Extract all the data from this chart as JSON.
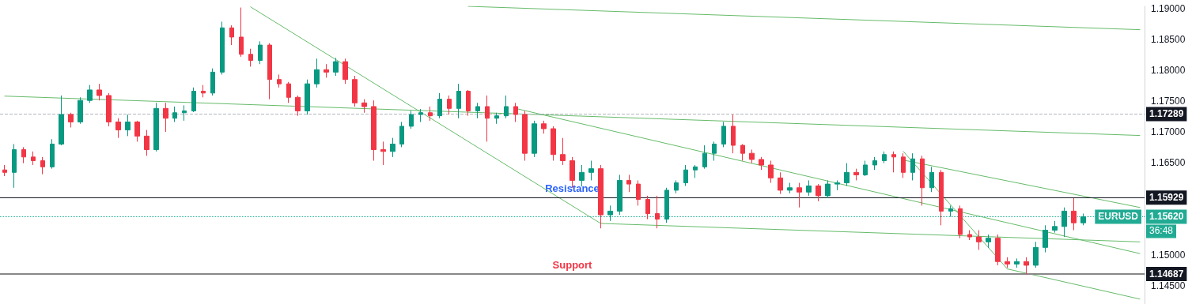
{
  "chart_data": {
    "type": "candlestick",
    "categories": [
      null,
      null,
      null,
      null,
      null,
      null,
      null,
      null,
      null,
      null,
      null,
      null,
      null,
      null,
      null,
      null,
      null,
      null,
      null,
      null,
      null,
      null,
      null,
      null,
      null,
      null,
      null,
      null,
      null,
      null,
      null,
      null,
      null,
      null,
      null,
      null,
      null,
      null,
      null,
      null,
      null,
      null,
      null,
      null,
      null,
      null,
      null,
      null,
      null,
      null,
      null,
      null,
      null,
      null,
      null,
      null,
      null,
      null,
      null,
      null,
      null,
      null,
      null,
      null,
      null,
      null,
      null,
      null,
      null,
      null,
      null,
      null,
      null,
      null,
      null,
      null,
      null,
      null,
      null,
      null,
      null,
      null,
      null,
      null,
      null,
      null,
      null,
      null,
      null,
      null,
      null,
      null,
      null,
      null,
      null,
      null,
      null,
      null,
      null,
      null,
      null,
      null,
      null,
      null,
      null,
      null,
      null,
      null,
      null,
      null,
      null,
      null,
      null,
      null,
      null,
      null,
      null,
      null,
      null,
      null,
      null
    ],
    "ohlc": [
      [
        1.1638,
        1.1646,
        1.1628,
        1.1634
      ],
      [
        1.1634,
        1.168,
        1.1609,
        1.1671
      ],
      [
        1.1671,
        1.1675,
        1.1649,
        1.1659
      ],
      [
        1.1659,
        1.1668,
        1.1646,
        1.1653
      ],
      [
        1.1653,
        1.1659,
        1.1631,
        1.1643
      ],
      [
        1.1643,
        1.1688,
        1.164,
        1.168
      ],
      [
        1.168,
        1.1759,
        1.1678,
        1.1728
      ],
      [
        1.1728,
        1.1731,
        1.1707,
        1.1716
      ],
      [
        1.1716,
        1.1756,
        1.1713,
        1.1751
      ],
      [
        1.1751,
        1.1776,
        1.1747,
        1.1768
      ],
      [
        1.1768,
        1.1778,
        1.1751,
        1.1759
      ],
      [
        1.1759,
        1.1763,
        1.1709,
        1.1716
      ],
      [
        1.1716,
        1.1722,
        1.169,
        1.1703
      ],
      [
        1.1703,
        1.1728,
        1.1693,
        1.1716
      ],
      [
        1.1716,
        1.1718,
        1.1684,
        1.1693
      ],
      [
        1.1693,
        1.1703,
        1.1661,
        1.1671
      ],
      [
        1.1671,
        1.1747,
        1.1668,
        1.1738
      ],
      [
        1.1738,
        1.1747,
        1.17,
        1.1722
      ],
      [
        1.1722,
        1.1741,
        1.1716,
        1.1731
      ],
      [
        1.1731,
        1.1743,
        1.1718,
        1.1734
      ],
      [
        1.1734,
        1.1772,
        1.1732,
        1.1766
      ],
      [
        1.1766,
        1.1776,
        1.1756,
        1.1763
      ],
      [
        1.1763,
        1.1803,
        1.1759,
        1.1797
      ],
      [
        1.1797,
        1.1879,
        1.1793,
        1.1869
      ],
      [
        1.1869,
        1.1873,
        1.1841,
        1.1854
      ],
      [
        1.1854,
        1.1902,
        1.1822,
        1.1826
      ],
      [
        1.1826,
        1.1835,
        1.1806,
        1.1816
      ],
      [
        1.1816,
        1.1847,
        1.181,
        1.1841
      ],
      [
        1.1841,
        1.1844,
        1.1753,
        1.1785
      ],
      [
        1.1785,
        1.1793,
        1.1772,
        1.1778
      ],
      [
        1.1778,
        1.1781,
        1.1747,
        1.1756
      ],
      [
        1.1756,
        1.1759,
        1.1726,
        1.1734
      ],
      [
        1.1734,
        1.1785,
        1.1728,
        1.1778
      ],
      [
        1.1778,
        1.1819,
        1.1772,
        1.1801
      ],
      [
        1.1801,
        1.181,
        1.1788,
        1.1797
      ],
      [
        1.1797,
        1.182,
        1.1791,
        1.1814
      ],
      [
        1.1814,
        1.1819,
        1.1778,
        1.1785
      ],
      [
        1.1785,
        1.1791,
        1.1741,
        1.1747
      ],
      [
        1.1747,
        1.1753,
        1.1731,
        1.1741
      ],
      [
        1.1741,
        1.1751,
        1.1653,
        1.1671
      ],
      [
        1.1671,
        1.1684,
        1.1646,
        1.1668
      ],
      [
        1.1668,
        1.169,
        1.1659,
        1.168
      ],
      [
        1.168,
        1.1716,
        1.1675,
        1.1709
      ],
      [
        1.1709,
        1.1734,
        1.1705,
        1.1728
      ],
      [
        1.1728,
        1.1737,
        1.1716,
        1.1731
      ],
      [
        1.1731,
        1.1741,
        1.1718,
        1.1726
      ],
      [
        1.1726,
        1.1763,
        1.1722,
        1.1753
      ],
      [
        1.1753,
        1.1759,
        1.1728,
        1.1738
      ],
      [
        1.1738,
        1.1778,
        1.1722,
        1.1766
      ],
      [
        1.1766,
        1.1768,
        1.1726,
        1.1734
      ],
      [
        1.1734,
        1.1747,
        1.1722,
        1.1741
      ],
      [
        1.1741,
        1.1759,
        1.1684,
        1.1722
      ],
      [
        1.1722,
        1.1731,
        1.1713,
        1.1726
      ],
      [
        1.1726,
        1.1759,
        1.1722,
        1.1741
      ],
      [
        1.1741,
        1.1747,
        1.1716,
        1.1728
      ],
      [
        1.1728,
        1.1734,
        1.1653,
        1.1665
      ],
      [
        1.1665,
        1.1718,
        1.1659,
        1.1713
      ],
      [
        1.1713,
        1.1718,
        1.1697,
        1.1705
      ],
      [
        1.1705,
        1.1709,
        1.1653,
        1.1663
      ],
      [
        1.1663,
        1.169,
        1.1646,
        1.1653
      ],
      [
        1.1653,
        1.1659,
        1.1609,
        1.1621
      ],
      [
        1.1621,
        1.1646,
        1.1611,
        1.1634
      ],
      [
        1.1634,
        1.1653,
        1.1621,
        1.164
      ],
      [
        1.164,
        1.1646,
        1.1543,
        1.1565
      ],
      [
        1.1565,
        1.158,
        1.1555,
        1.1571
      ],
      [
        1.1571,
        1.163,
        1.1565,
        1.1621
      ],
      [
        1.1621,
        1.163,
        1.1602,
        1.1615
      ],
      [
        1.1615,
        1.1621,
        1.158,
        1.159
      ],
      [
        1.159,
        1.1596,
        1.1558,
        1.1567
      ],
      [
        1.1567,
        1.1596,
        1.1543,
        1.1558
      ],
      [
        1.1558,
        1.1609,
        1.1552,
        1.1605
      ],
      [
        1.1605,
        1.1621,
        1.16,
        1.1617
      ],
      [
        1.1617,
        1.1646,
        1.1612,
        1.1638
      ],
      [
        1.1638,
        1.1646,
        1.1625,
        1.1643
      ],
      [
        1.1643,
        1.1678,
        1.164,
        1.1665
      ],
      [
        1.1665,
        1.1684,
        1.1653,
        1.168
      ],
      [
        1.168,
        1.1716,
        1.1675,
        1.1709
      ],
      [
        1.1709,
        1.1728,
        1.1665,
        1.1678
      ],
      [
        1.1678,
        1.168,
        1.1653,
        1.1665
      ],
      [
        1.1665,
        1.1671,
        1.1649,
        1.1655
      ],
      [
        1.1655,
        1.1659,
        1.1638,
        1.1646
      ],
      [
        1.1646,
        1.1653,
        1.1617,
        1.1625
      ],
      [
        1.1625,
        1.1634,
        1.1599,
        1.1605
      ],
      [
        1.1605,
        1.1617,
        1.16,
        1.1609
      ],
      [
        1.1609,
        1.1617,
        1.1577,
        1.1602
      ],
      [
        1.1602,
        1.1621,
        1.1596,
        1.1612
      ],
      [
        1.1612,
        1.1615,
        1.1587,
        1.1596
      ],
      [
        1.1596,
        1.1621,
        1.1592,
        1.1615
      ],
      [
        1.1615,
        1.1621,
        1.1605,
        1.1617
      ],
      [
        1.1617,
        1.1649,
        1.1612,
        1.1634
      ],
      [
        1.1634,
        1.164,
        1.1621,
        1.163
      ],
      [
        1.163,
        1.1653,
        1.1628,
        1.1646
      ],
      [
        1.1646,
        1.1659,
        1.1638,
        1.1653
      ],
      [
        1.1653,
        1.1668,
        1.1649,
        1.1663
      ],
      [
        1.1663,
        1.1668,
        1.1634,
        1.1659
      ],
      [
        1.1659,
        1.1665,
        1.1625,
        1.1634
      ],
      [
        1.1634,
        1.1665,
        1.1621,
        1.1656
      ],
      [
        1.1656,
        1.1661,
        1.158,
        1.1609
      ],
      [
        1.1609,
        1.1643,
        1.1602,
        1.1634
      ],
      [
        1.1634,
        1.1638,
        1.1548,
        1.1571
      ],
      [
        1.1571,
        1.158,
        1.1562,
        1.1575
      ],
      [
        1.1575,
        1.158,
        1.1527,
        1.1533
      ],
      [
        1.1533,
        1.154,
        1.1524,
        1.1529
      ],
      [
        1.1529,
        1.154,
        1.1508,
        1.1521
      ],
      [
        1.1521,
        1.1533,
        1.1511,
        1.1527
      ],
      [
        1.1527,
        1.1533,
        1.1483,
        1.1489
      ],
      [
        1.1489,
        1.1496,
        1.1479,
        1.1485
      ],
      [
        1.1485,
        1.1494,
        1.1479,
        1.1489
      ],
      [
        1.1489,
        1.1496,
        1.1468,
        1.1483
      ],
      [
        1.1483,
        1.1521,
        1.1479,
        1.1512
      ],
      [
        1.1512,
        1.1548,
        1.1504,
        1.154
      ],
      [
        1.154,
        1.1555,
        1.1536,
        1.1546
      ],
      [
        1.1546,
        1.1577,
        1.1529,
        1.1571
      ],
      [
        1.1571,
        1.1592,
        1.154,
        1.1552
      ],
      [
        1.1552,
        1.1567,
        1.1548,
        1.1562
      ],
      null,
      null,
      null,
      null,
      null,
      null
    ],
    "series": [
      {
        "type": "line",
        "color": "#66bb6a",
        "values": [
          null,
          null,
          null,
          null,
          null,
          null,
          null,
          null,
          null,
          null,
          null,
          null,
          null,
          null,
          null,
          null,
          null,
          null,
          null,
          null,
          null,
          null,
          null,
          null,
          null,
          null,
          null,
          null,
          null,
          null,
          null,
          null,
          null,
          null,
          null,
          null,
          null,
          null,
          null,
          null,
          null,
          null,
          null,
          null,
          null,
          null,
          null,
          null,
          null,
          1.1904,
          null,
          null,
          null,
          null,
          null,
          null,
          null,
          null,
          null,
          null,
          null,
          null,
          null,
          null,
          null,
          null,
          null,
          null,
          null,
          null,
          null,
          null,
          null,
          null,
          null,
          null,
          null,
          null,
          null,
          null,
          null,
          null,
          null,
          null,
          null,
          null,
          null,
          null,
          null,
          null,
          null,
          null,
          null,
          null,
          null,
          null,
          null,
          null,
          null,
          null,
          null,
          null,
          null,
          null,
          null,
          null,
          null,
          null,
          null,
          null,
          null,
          null,
          null,
          null,
          null,
          null,
          null,
          null,
          null,
          null,
          1.1866
        ]
      },
      {
        "type": "line",
        "color": "#66bb6a",
        "values": [
          1.1758,
          null,
          null,
          null,
          null,
          null,
          null,
          null,
          null,
          null,
          null,
          null,
          null,
          null,
          null,
          null,
          null,
          null,
          null,
          null,
          null,
          null,
          null,
          null,
          null,
          null,
          null,
          null,
          null,
          null,
          null,
          null,
          null,
          null,
          null,
          null,
          null,
          null,
          null,
          null,
          null,
          null,
          null,
          null,
          null,
          null,
          null,
          null,
          null,
          null,
          null,
          null,
          null,
          null,
          null,
          null,
          null,
          null,
          null,
          null,
          null,
          null,
          null,
          null,
          null,
          null,
          null,
          null,
          null,
          null,
          null,
          null,
          null,
          null,
          null,
          null,
          null,
          null,
          null,
          null,
          null,
          null,
          null,
          null,
          null,
          null,
          null,
          null,
          null,
          null,
          null,
          null,
          null,
          null,
          null,
          null,
          null,
          null,
          null,
          null,
          null,
          null,
          null,
          null,
          null,
          null,
          null,
          null,
          null,
          null,
          null,
          null,
          null,
          null,
          null,
          null,
          null,
          null,
          null,
          null,
          1.1694
        ]
      },
      {
        "type": "line",
        "color": "#66bb6a",
        "values": [
          null,
          null,
          null,
          null,
          null,
          null,
          null,
          null,
          null,
          null,
          null,
          null,
          null,
          null,
          null,
          null,
          null,
          null,
          null,
          null,
          null,
          null,
          null,
          null,
          null,
          null,
          null,
          null,
          null,
          null,
          null,
          null,
          null,
          null,
          null,
          null,
          null,
          null,
          null,
          null,
          null,
          null,
          null,
          null,
          null,
          null,
          null,
          null,
          null,
          null,
          null,
          null,
          null,
          null,
          1.1738,
          null,
          null,
          null,
          null,
          null,
          null,
          null,
          null,
          null,
          null,
          null,
          null,
          null,
          null,
          null,
          null,
          null,
          null,
          null,
          null,
          null,
          null,
          null,
          null,
          null,
          null,
          null,
          null,
          null,
          null,
          null,
          null,
          null,
          null,
          null,
          null,
          null,
          null,
          null,
          null,
          null,
          null,
          null,
          null,
          null,
          null,
          null,
          null,
          null,
          null,
          null,
          null,
          null,
          null,
          null,
          null,
          null,
          null,
          null,
          null,
          null,
          null,
          null,
          null,
          null,
          1.1502
        ]
      },
      {
        "type": "line",
        "color": "#66bb6a",
        "values": [
          null,
          null,
          null,
          null,
          null,
          null,
          null,
          null,
          null,
          null,
          null,
          null,
          null,
          null,
          null,
          null,
          null,
          null,
          null,
          null,
          null,
          null,
          null,
          null,
          null,
          null,
          1.1903,
          null,
          null,
          null,
          null,
          null,
          null,
          null,
          null,
          null,
          null,
          null,
          null,
          null,
          null,
          null,
          null,
          null,
          null,
          null,
          null,
          null,
          null,
          null,
          null,
          null,
          null,
          null,
          null,
          null,
          null,
          null,
          null,
          null,
          null,
          null,
          null,
          1.1551,
          null,
          null,
          null,
          null,
          null,
          null,
          null,
          null,
          null,
          null,
          null,
          null,
          null,
          null,
          null,
          null,
          null,
          null,
          null,
          null,
          null,
          null,
          null,
          null,
          null,
          null,
          null,
          null,
          null,
          null,
          null,
          null,
          null,
          null,
          null,
          null,
          null,
          null,
          null,
          null,
          null,
          null,
          null,
          null,
          null,
          null,
          null,
          null,
          null,
          null,
          null,
          null,
          null,
          null,
          null,
          null,
          null
        ]
      },
      {
        "type": "line",
        "color": "#66bb6a",
        "values": [
          null,
          null,
          null,
          null,
          null,
          null,
          null,
          null,
          null,
          null,
          null,
          null,
          null,
          null,
          null,
          null,
          null,
          null,
          null,
          null,
          null,
          null,
          null,
          null,
          null,
          null,
          null,
          null,
          null,
          null,
          null,
          null,
          null,
          null,
          null,
          null,
          null,
          null,
          null,
          null,
          null,
          null,
          null,
          null,
          null,
          null,
          null,
          null,
          null,
          null,
          null,
          null,
          null,
          null,
          null,
          null,
          null,
          null,
          null,
          null,
          null,
          null,
          null,
          1.1551,
          null,
          null,
          null,
          null,
          null,
          null,
          null,
          null,
          null,
          null,
          null,
          null,
          null,
          null,
          null,
          null,
          null,
          null,
          null,
          null,
          null,
          null,
          null,
          null,
          null,
          null,
          null,
          null,
          null,
          null,
          null,
          null,
          null,
          null,
          null,
          null,
          null,
          null,
          null,
          null,
          null,
          null,
          null,
          null,
          null,
          null,
          null,
          null,
          null,
          null,
          null,
          null,
          null,
          null,
          null,
          null,
          1.1521
        ]
      },
      {
        "type": "line",
        "color": "#66bb6a",
        "values": [
          null,
          null,
          null,
          null,
          null,
          null,
          null,
          null,
          null,
          null,
          null,
          null,
          null,
          null,
          null,
          null,
          null,
          null,
          null,
          null,
          null,
          null,
          null,
          null,
          null,
          null,
          null,
          null,
          null,
          null,
          null,
          null,
          null,
          null,
          null,
          null,
          null,
          null,
          null,
          null,
          null,
          null,
          null,
          null,
          null,
          null,
          null,
          null,
          null,
          null,
          null,
          null,
          null,
          null,
          null,
          null,
          null,
          null,
          null,
          null,
          null,
          null,
          null,
          null,
          null,
          null,
          null,
          null,
          null,
          null,
          null,
          null,
          null,
          null,
          null,
          null,
          null,
          null,
          null,
          null,
          null,
          null,
          null,
          null,
          null,
          null,
          null,
          null,
          null,
          null,
          null,
          null,
          null,
          null,
          null,
          1.1654,
          null,
          null,
          null,
          null,
          null,
          null,
          null,
          null,
          null,
          null,
          null,
          null,
          null,
          null,
          null,
          null,
          null,
          null,
          null,
          null,
          null,
          null,
          null,
          null,
          1.1577
        ]
      },
      {
        "type": "line",
        "color": "#66bb6a",
        "values": [
          null,
          null,
          null,
          null,
          null,
          null,
          null,
          null,
          null,
          null,
          null,
          null,
          null,
          null,
          null,
          null,
          null,
          null,
          null,
          null,
          null,
          null,
          null,
          null,
          null,
          null,
          null,
          null,
          null,
          null,
          null,
          null,
          null,
          null,
          null,
          null,
          null,
          null,
          null,
          null,
          null,
          null,
          null,
          null,
          null,
          null,
          null,
          null,
          null,
          null,
          null,
          null,
          null,
          null,
          null,
          null,
          null,
          null,
          null,
          null,
          null,
          null,
          null,
          null,
          null,
          null,
          null,
          null,
          null,
          null,
          null,
          null,
          null,
          null,
          null,
          null,
          null,
          null,
          null,
          null,
          null,
          null,
          null,
          null,
          null,
          null,
          null,
          null,
          null,
          null,
          null,
          null,
          null,
          null,
          null,
          1.1668,
          null,
          null,
          null,
          null,
          null,
          null,
          null,
          null,
          null,
          null,
          1.1477,
          null,
          null,
          null,
          null,
          null,
          null,
          null,
          null,
          null,
          null,
          null,
          null,
          null,
          null
        ]
      },
      {
        "type": "line",
        "color": "#66bb6a",
        "values": [
          null,
          null,
          null,
          null,
          null,
          null,
          null,
          null,
          null,
          null,
          null,
          null,
          null,
          null,
          null,
          null,
          null,
          null,
          null,
          null,
          null,
          null,
          null,
          null,
          null,
          null,
          null,
          null,
          null,
          null,
          null,
          null,
          null,
          null,
          null,
          null,
          null,
          null,
          null,
          null,
          null,
          null,
          null,
          null,
          null,
          null,
          null,
          null,
          null,
          null,
          null,
          null,
          null,
          null,
          null,
          null,
          null,
          null,
          null,
          null,
          null,
          null,
          null,
          null,
          null,
          null,
          null,
          null,
          null,
          null,
          null,
          null,
          null,
          null,
          null,
          null,
          null,
          null,
          null,
          null,
          null,
          null,
          null,
          null,
          null,
          null,
          null,
          null,
          null,
          null,
          null,
          null,
          null,
          null,
          null,
          null,
          null,
          null,
          null,
          null,
          null,
          null,
          null,
          null,
          null,
          null,
          1.1477,
          null,
          null,
          null,
          null,
          null,
          null,
          null,
          null,
          null,
          null,
          null,
          null,
          null,
          1.1428
        ]
      }
    ],
    "ylim": [
      1.142,
      1.1904
    ],
    "yticks": [
      {
        "value": 1.145,
        "label": "1.14500"
      },
      {
        "value": 1.15,
        "label": "1.15000"
      },
      {
        "value": 1.165,
        "label": "1.16500"
      },
      {
        "value": 1.17,
        "label": "1.17000"
      },
      {
        "value": 1.175,
        "label": "1.17500"
      },
      {
        "value": 1.18,
        "label": "1.18000"
      },
      {
        "value": 1.185,
        "label": "1.18500"
      },
      {
        "value": 1.19,
        "label": "1.19000"
      }
    ],
    "tick_labels": "y",
    "ref_lines": [
      {
        "axis": "y",
        "value": 1.17289,
        "label": "1.17289",
        "color": "#b2b5be",
        "line_style": "dashed"
      },
      {
        "axis": "y",
        "value": 1.15929,
        "label": "1.15929",
        "color": "#131722",
        "line_style": "solid"
      },
      {
        "axis": "y",
        "value": 1.14687,
        "label": "1.14687",
        "color": "#888888",
        "line_style": "solid"
      },
      {
        "axis": "y",
        "value": 1.1562,
        "label": "1.15620",
        "color": "#22ab94",
        "line_style": "dotted"
      }
    ],
    "annotations": [
      {
        "text": "Resistance",
        "y": 1.15929
      },
      {
        "text": "Support",
        "y": 1.14687
      },
      "EURUSD",
      "36:48"
    ]
  }
}
